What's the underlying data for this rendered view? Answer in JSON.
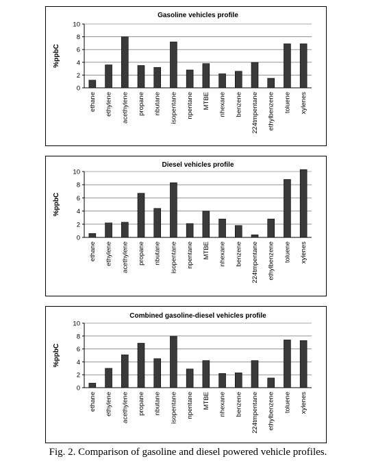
{
  "caption": "Fig. 2. Comparison of gasoline and diesel powered vehicle profiles.",
  "chart_data": [
    {
      "type": "bar",
      "title": "Gasoline vehicles profile",
      "xlabel": "",
      "ylabel": "%ppbC",
      "ylim": [
        0,
        10
      ],
      "yticks": [
        "0",
        "2",
        "4",
        "6",
        "8",
        "10"
      ],
      "grid": true,
      "bar_color": "#3a3a3a",
      "categories": [
        "ethane",
        "ethylene",
        "acethylene",
        "propane",
        "nbutane",
        "isopentane",
        "npentane",
        "MTBE",
        "nhexane",
        "benzene",
        "224tmpentane",
        "ethylbenzene",
        "toluene",
        "xylenes"
      ],
      "values": [
        1.2,
        3.6,
        8.0,
        3.5,
        3.2,
        7.2,
        2.8,
        3.8,
        2.2,
        2.6,
        4.0,
        1.5,
        6.9,
        6.9
      ]
    },
    {
      "type": "bar",
      "title": "Diesel vehicles profile",
      "xlabel": "",
      "ylabel": "%ppbC",
      "ylim": [
        0,
        10
      ],
      "yticks": [
        "0",
        "2",
        "4",
        "6",
        "8",
        "10"
      ],
      "grid": true,
      "bar_color": "#3a3a3a",
      "categories": [
        "ethane",
        "ethylene",
        "acethylene",
        "propane",
        "nbutane",
        "isopentane",
        "npentane",
        "MTBE",
        "nhexane",
        "benzene",
        "224tmpentane",
        "ethylbenzene",
        "toluene",
        "xylenes"
      ],
      "values": [
        0.6,
        2.2,
        2.3,
        6.7,
        4.4,
        8.3,
        2.1,
        4.0,
        2.8,
        1.8,
        0.4,
        2.8,
        8.8,
        10.3
      ]
    },
    {
      "type": "bar",
      "title": "Combined gasoline-diesel vehicles profile",
      "xlabel": "",
      "ylabel": "%ppbC",
      "ylim": [
        0,
        10
      ],
      "yticks": [
        "0",
        "2",
        "4",
        "6",
        "8",
        "10"
      ],
      "grid": true,
      "bar_color": "#3a3a3a",
      "categories": [
        "ethane",
        "ethylene",
        "acethylene",
        "propane",
        "nbutane",
        "isopentane",
        "npentane",
        "MTBE",
        "nhexane",
        "benzene",
        "224tmpentane",
        "ethylbenzene",
        "toluene",
        "xylenes"
      ],
      "values": [
        0.7,
        3.0,
        5.1,
        6.9,
        4.5,
        8.0,
        2.9,
        4.2,
        2.2,
        2.3,
        4.2,
        1.5,
        7.4,
        7.3
      ]
    }
  ]
}
